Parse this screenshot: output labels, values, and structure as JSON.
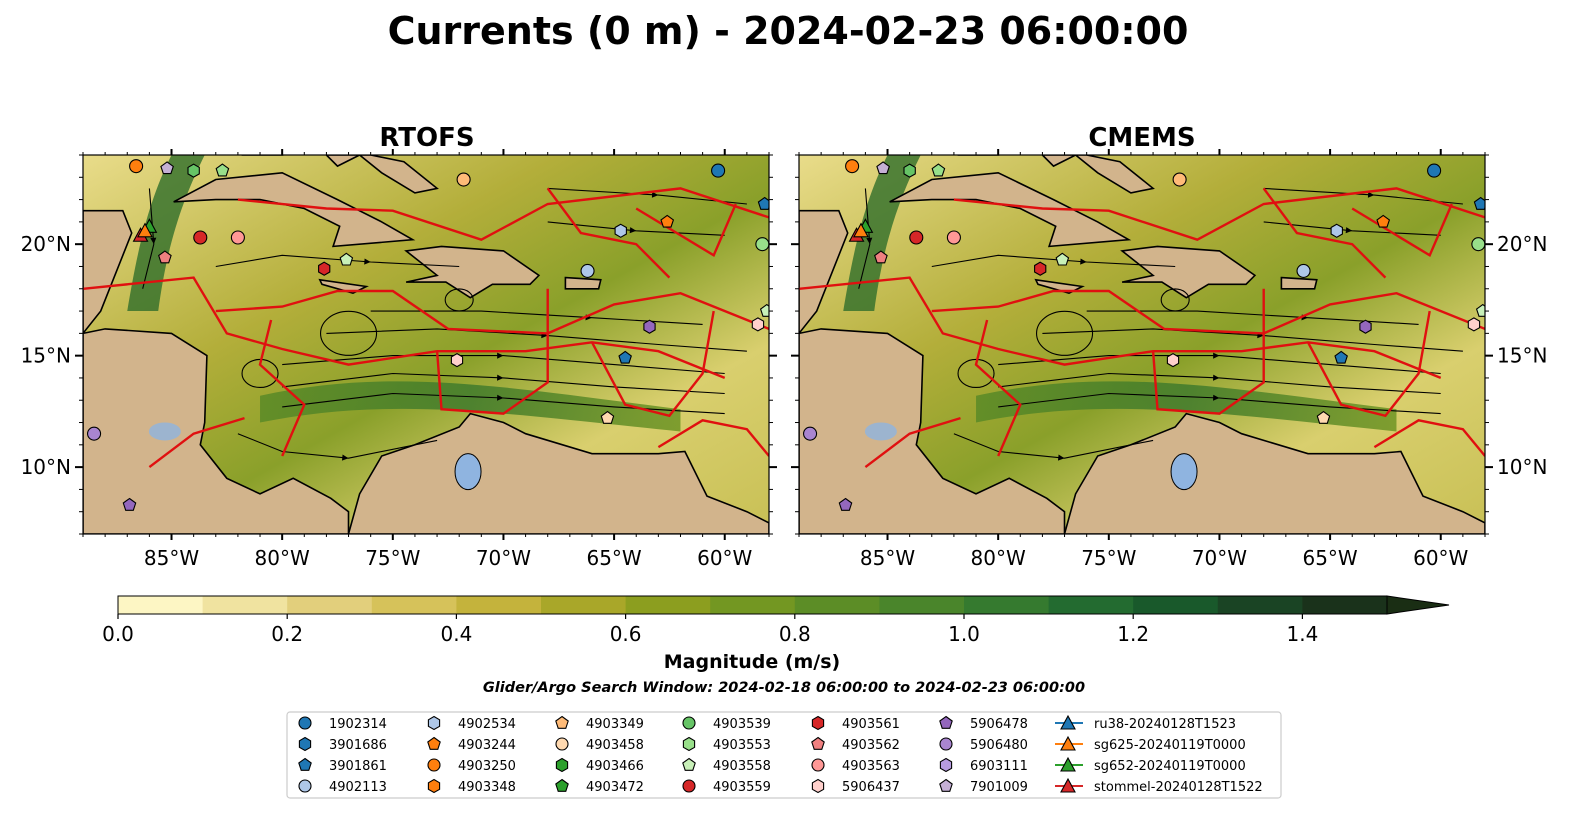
{
  "title": "Currents (0 m) - 2024-02-23 06:00:00",
  "colors": {
    "land": "#d2b48c",
    "water_body": "#8fb4e0",
    "eez": "#e01010",
    "stream": "#000000",
    "low": "#fdf6c4",
    "high": "#1a2e14"
  },
  "chart_data": [
    {
      "type": "map",
      "title": "RTOFS",
      "xlim_lon": [
        -89,
        -58
      ],
      "ylim_lat": [
        7,
        24
      ],
      "x_ticks": [
        {
          "value": -85,
          "label": "85°W"
        },
        {
          "value": -80,
          "label": "80°W"
        },
        {
          "value": -75,
          "label": "75°W"
        },
        {
          "value": -70,
          "label": "70°W"
        },
        {
          "value": -65,
          "label": "65°W"
        },
        {
          "value": -60,
          "label": "60°W"
        }
      ],
      "y_ticks": [
        {
          "value": 20,
          "label": "20°N"
        },
        {
          "value": 15,
          "label": "15°N"
        },
        {
          "value": 10,
          "label": "10°N"
        }
      ],
      "y_tick_side": "left"
    },
    {
      "type": "map",
      "title": "CMEMS",
      "xlim_lon": [
        -89,
        -58
      ],
      "ylim_lat": [
        7,
        24
      ],
      "x_ticks": [
        {
          "value": -85,
          "label": "85°W"
        },
        {
          "value": -80,
          "label": "80°W"
        },
        {
          "value": -75,
          "label": "75°W"
        },
        {
          "value": -70,
          "label": "70°W"
        },
        {
          "value": -65,
          "label": "65°W"
        },
        {
          "value": -60,
          "label": "60°W"
        }
      ],
      "y_ticks": [
        {
          "value": 20,
          "label": "20°N"
        },
        {
          "value": 15,
          "label": "15°N"
        },
        {
          "value": 10,
          "label": "10°N"
        }
      ],
      "y_tick_side": "right"
    }
  ],
  "colorbar": {
    "label": "Magnitude (m/s)",
    "range": [
      0,
      1.5
    ],
    "extend": "max",
    "ticks": [
      {
        "value": 0.0,
        "label": "0.0"
      },
      {
        "value": 0.2,
        "label": "0.2"
      },
      {
        "value": 0.4,
        "label": "0.4"
      },
      {
        "value": 0.6,
        "label": "0.6"
      },
      {
        "value": 0.8,
        "label": "0.8"
      },
      {
        "value": 1.0,
        "label": "1.0"
      },
      {
        "value": 1.2,
        "label": "1.2"
      },
      {
        "value": 1.4,
        "label": "1.4"
      }
    ],
    "colors": [
      "#fdf6c4",
      "#f0e3a0",
      "#e2cf7c",
      "#d6c25a",
      "#c4b33c",
      "#a9a729",
      "#8c9e1f",
      "#739722",
      "#5c8d26",
      "#4a852b",
      "#357a2f",
      "#236b30",
      "#19592b",
      "#1a4424",
      "#1a321b"
    ]
  },
  "subtitle": "Glider/Argo Search Window: 2024-02-18 06:00:00 to 2024-02-23 06:00:00",
  "legend": {
    "columns": [
      [
        {
          "label": "1902314",
          "marker": "circle",
          "color": "#1f77b4"
        },
        {
          "label": "3901686",
          "marker": "hexagon",
          "color": "#1f77b4"
        },
        {
          "label": "3901861",
          "marker": "pentagon",
          "color": "#1f77b4"
        },
        {
          "label": "4902113",
          "marker": "circle",
          "color": "#aec7e8"
        }
      ],
      [
        {
          "label": "4902534",
          "marker": "hexagon",
          "color": "#aec7e8"
        },
        {
          "label": "4903244",
          "marker": "pentagon",
          "color": "#ff7f0e"
        },
        {
          "label": "4903250",
          "marker": "circle",
          "color": "#ff7f0e"
        },
        {
          "label": "4903348",
          "marker": "hexagon",
          "color": "#ff7f0e"
        }
      ],
      [
        {
          "label": "4903349",
          "marker": "pentagon",
          "color": "#ffbb78"
        },
        {
          "label": "4903458",
          "marker": "circle",
          "color": "#ffd9b0"
        },
        {
          "label": "4903466",
          "marker": "hexagon",
          "color": "#2ca02c"
        },
        {
          "label": "4903472",
          "marker": "pentagon",
          "color": "#2ca02c"
        }
      ],
      [
        {
          "label": "4903539",
          "marker": "circle",
          "color": "#66c466"
        },
        {
          "label": "4903553",
          "marker": "hexagon",
          "color": "#98df8a"
        },
        {
          "label": "4903558",
          "marker": "pentagon",
          "color": "#c8f0b8"
        },
        {
          "label": "4903559",
          "marker": "circle",
          "color": "#d62728"
        }
      ],
      [
        {
          "label": "4903561",
          "marker": "hexagon",
          "color": "#d62728"
        },
        {
          "label": "4903562",
          "marker": "pentagon",
          "color": "#f08080"
        },
        {
          "label": "4903563",
          "marker": "circle",
          "color": "#ff9896"
        },
        {
          "label": "5906437",
          "marker": "hexagon",
          "color": "#ffd0cc"
        }
      ],
      [
        {
          "label": "5906478",
          "marker": "pentagon",
          "color": "#9467bd"
        },
        {
          "label": "5906480",
          "marker": "circle",
          "color": "#a985d0"
        },
        {
          "label": "6903111",
          "marker": "hexagon",
          "color": "#b79be0"
        },
        {
          "label": "7901009",
          "marker": "pentagon",
          "color": "#c5b0d5"
        }
      ],
      [
        {
          "label": "ru38-20240128T1523",
          "marker": "triangle-line",
          "color": "#1f77b4"
        },
        {
          "label": "sg625-20240119T0000",
          "marker": "triangle-line",
          "color": "#ff7f0e"
        },
        {
          "label": "sg652-20240119T0000",
          "marker": "triangle-line",
          "color": "#2ca02c"
        },
        {
          "label": "stommel-20240128T1522",
          "marker": "triangle-line",
          "color": "#d62728"
        }
      ]
    ]
  }
}
